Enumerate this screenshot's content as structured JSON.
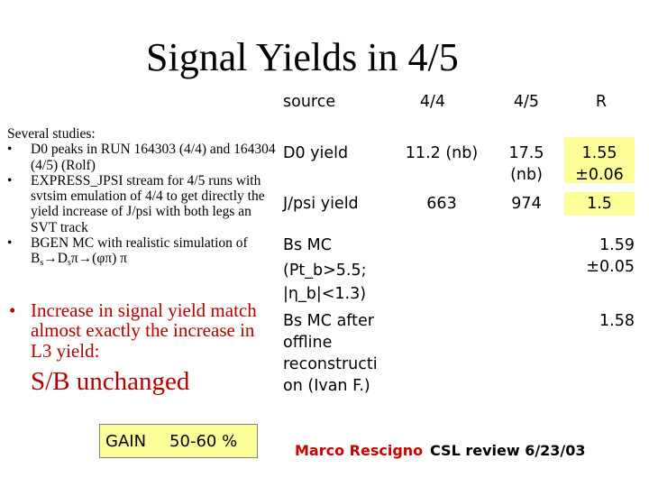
{
  "title": "Signal Yields in 4/5",
  "studies": {
    "heading": "Several studies:",
    "bullet_char": "•",
    "items": [
      {
        "text": "D0 peaks in RUN 164303 (4/4) and 164304 (4/5) (Rolf)"
      },
      {
        "text": "EXPRESS_JPSI stream for 4/5 runs with svtsim emulation of 4/4 to get directly the yield increase of J/psi with both legs an SVT track"
      },
      {
        "text_before": "BGEN MC with realistic simulation of B",
        "sub1": "s",
        "mid1": "→D",
        "sub2": "s",
        "text_after": "π→(φπ) π"
      }
    ]
  },
  "highlight": {
    "bullet_char": "•",
    "text": "Increase in signal yield match almost exactly the increase in L3 yield:",
    "conclusion": "S/B unchanged"
  },
  "gain": {
    "label": "GAIN",
    "value": "50-60 %"
  },
  "table": {
    "headers": {
      "source": "source",
      "c44": "4/4",
      "c45": "4/5",
      "r": "R"
    },
    "rows": [
      {
        "source": "D0 yield",
        "c44": "11.2 (nb)",
        "c45_line1": "17.5",
        "c45_line2": "(nb)",
        "r_line1": "1.55",
        "r_line2": "±0.06"
      },
      {
        "source": "J/psi yield",
        "c44": "663",
        "c45": "974",
        "r": "1.5"
      },
      {
        "source_line1": "Bs MC",
        "source_line2": "(Pt_b>5.5;",
        "source_line3": "|η_b|<1.3)",
        "r_line1": "1.59",
        "r_line2": "±0.05"
      },
      {
        "source_line1": "Bs MC after",
        "source_line2": "offline",
        "source_line3": "reconstructi",
        "source_line4": "on (Ivan F.)",
        "r": "1.58"
      }
    ],
    "highlight_color": "#ffff99"
  },
  "footer": {
    "author": "Marco Rescigno",
    "event": "CSL review 6/23/03"
  },
  "colors": {
    "accent_red": "#b40000",
    "author_red": "#cc0000",
    "highlight_yellow": "#ffff99"
  }
}
